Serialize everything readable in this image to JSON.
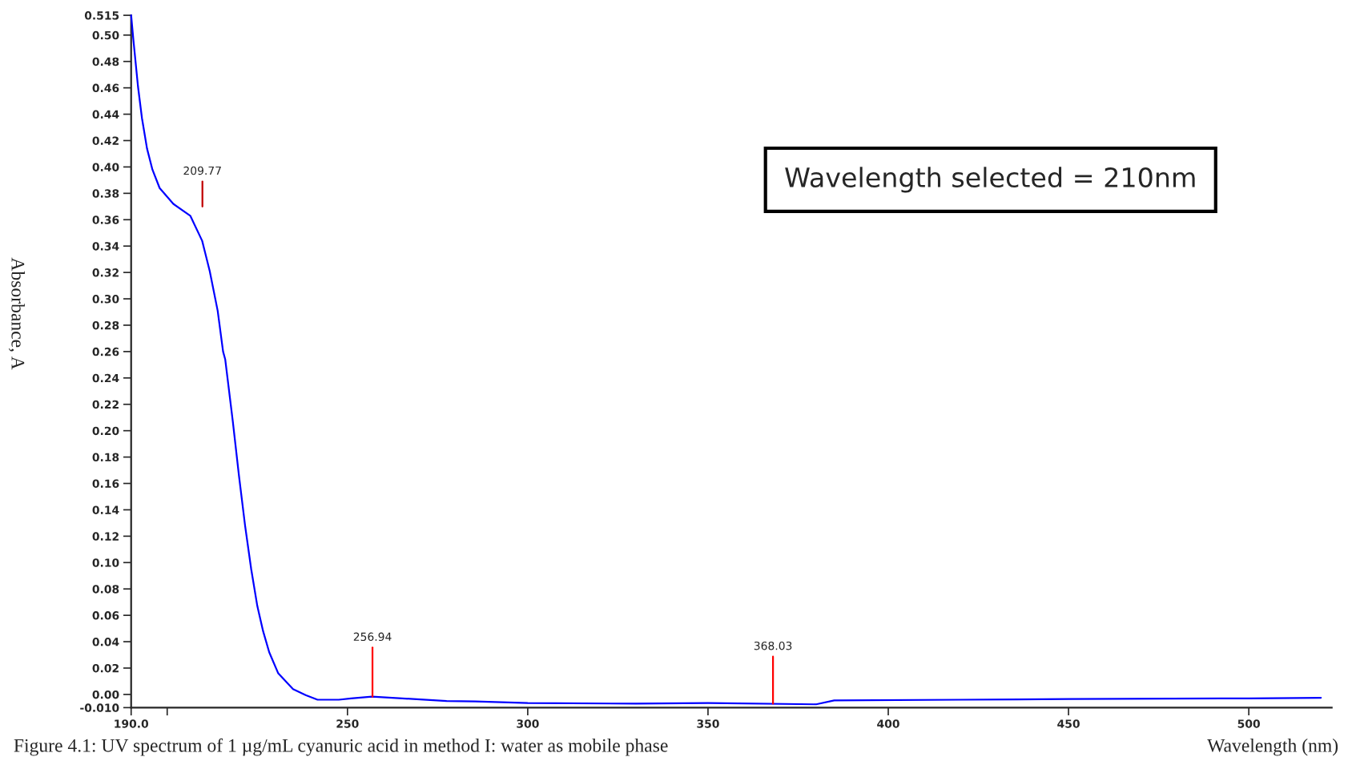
{
  "chart_data": {
    "type": "line",
    "xlabel": "Wavelength (nm)",
    "ylabel": "Absorbance, A",
    "xlim": [
      190,
      523
    ],
    "ylim": [
      -0.01,
      0.515
    ],
    "xticks": [
      {
        "value": 190,
        "label": "190.0"
      },
      {
        "value": 200,
        "label": null
      },
      250,
      300,
      350,
      400,
      450,
      500
    ],
    "yticks": [
      {
        "value": -0.01,
        "label": "-0.010"
      },
      {
        "value": 0.0,
        "label": "0.00"
      },
      {
        "value": 0.02,
        "label": "0.02"
      },
      {
        "value": 0.04,
        "label": "0.04"
      },
      {
        "value": 0.06,
        "label": "0.06"
      },
      {
        "value": 0.08,
        "label": "0.08"
      },
      {
        "value": 0.1,
        "label": "0.10"
      },
      {
        "value": 0.12,
        "label": "0.12"
      },
      {
        "value": 0.14,
        "label": "0.14"
      },
      {
        "value": 0.16,
        "label": "0.16"
      },
      {
        "value": 0.18,
        "label": "0.18"
      },
      {
        "value": 0.2,
        "label": "0.20"
      },
      {
        "value": 0.22,
        "label": "0.22"
      },
      {
        "value": 0.24,
        "label": "0.24"
      },
      {
        "value": 0.26,
        "label": "0.26"
      },
      {
        "value": 0.28,
        "label": "0.28"
      },
      {
        "value": 0.3,
        "label": "0.30"
      },
      {
        "value": 0.32,
        "label": "0.32"
      },
      {
        "value": 0.34,
        "label": "0.34"
      },
      {
        "value": 0.36,
        "label": "0.36"
      },
      {
        "value": 0.38,
        "label": "0.38"
      },
      {
        "value": 0.4,
        "label": "0.40"
      },
      {
        "value": 0.42,
        "label": "0.42"
      },
      {
        "value": 0.44,
        "label": "0.44"
      },
      {
        "value": 0.46,
        "label": "0.46"
      },
      {
        "value": 0.48,
        "label": "0.48"
      },
      {
        "value": 0.5,
        "label": "0.50"
      },
      {
        "value": 0.515,
        "label": "0.515"
      }
    ],
    "grid": false,
    "legend": false,
    "series": [
      {
        "color": "#0000ff",
        "x": [
          190,
          190.6,
          191.9,
          193,
          194.4,
          195.9,
          197.9,
          201.7,
          206.4,
          209.7,
          211.8,
          214,
          215.5,
          216.1,
          218.2,
          219.9,
          221.6,
          223.3,
          225,
          226.6,
          228.3,
          230.8,
          234.9,
          238.4,
          241.7,
          247.6,
          251,
          256.8,
          265.2,
          277.5,
          285.4,
          300,
          330,
          350,
          380,
          385,
          420,
          450,
          500,
          520
        ],
        "values": [
          0.515,
          0.497,
          0.461,
          0.437,
          0.414,
          0.398,
          0.384,
          0.372,
          0.363,
          0.344,
          0.321,
          0.291,
          0.26,
          0.254,
          0.207,
          0.166,
          0.128,
          0.095,
          0.067,
          0.048,
          0.032,
          0.016,
          0.004,
          -0.0005,
          -0.004,
          -0.004,
          -0.003,
          -0.0017,
          -0.003,
          -0.005,
          -0.0053,
          -0.0065,
          -0.007,
          -0.0065,
          -0.0075,
          -0.0045,
          -0.004,
          -0.0035,
          -0.003,
          -0.0025
        ]
      },
      {
        "color": "#c00000",
        "x": [
          209.77,
          209.77
        ],
        "values": [
          0.37,
          0.389
        ]
      },
      {
        "color": "#ff0000",
        "x": [
          256.94,
          256.94
        ],
        "values": [
          -0.0017,
          0.0356
        ]
      },
      {
        "color": "#ff0000",
        "x": [
          368.03,
          368.03
        ],
        "values": [
          -0.007,
          0.0287
        ]
      }
    ],
    "annotations": [
      {
        "text": "209.77",
        "x": 209.77,
        "y": 0.389
      },
      {
        "text": "256.94",
        "x": 256.94,
        "y": 0.0356
      },
      {
        "text": "368.03",
        "x": 368.03,
        "y": 0.0287
      },
      "Wavelength selected = 210nm",
      "Figure 4.1: UV spectrum of 1 µg/mL cyanuric acid in method I: water as mobile phase"
    ]
  }
}
